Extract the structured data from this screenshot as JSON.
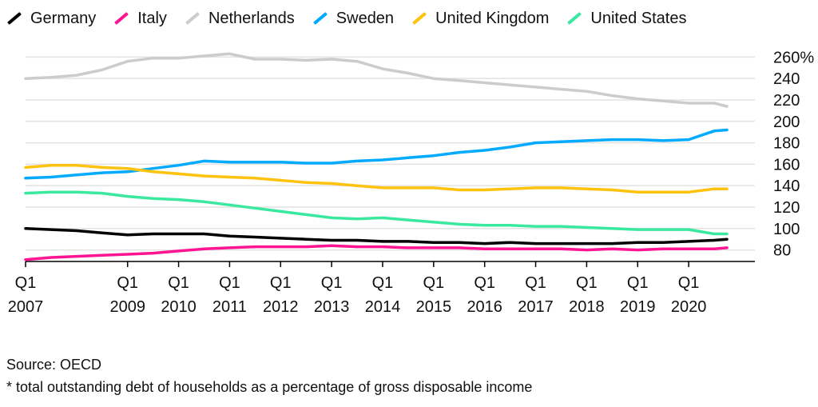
{
  "chart_data": {
    "type": "line",
    "title": "",
    "xlabel": "",
    "ylabel": "",
    "ylim": [
      70,
      264
    ],
    "xlim": [
      2007.0,
      2020.75
    ],
    "y_ticks": [
      80,
      100,
      120,
      140,
      160,
      180,
      200,
      220,
      240,
      260
    ],
    "y_tick_labels": [
      "80",
      "100",
      "120",
      "140",
      "160",
      "180",
      "200",
      "220",
      "240",
      "260%"
    ],
    "x_ticks": [
      {
        "x": 2007.0,
        "q": "Q1",
        "year": "2007"
      },
      {
        "x": 2009.0,
        "q": "Q1",
        "year": "2009"
      },
      {
        "x": 2010.0,
        "q": "Q1",
        "year": "2010"
      },
      {
        "x": 2011.0,
        "q": "Q1",
        "year": "2011"
      },
      {
        "x": 2012.0,
        "q": "Q1",
        "year": "2012"
      },
      {
        "x": 2013.0,
        "q": "Q1",
        "year": "2013"
      },
      {
        "x": 2014.0,
        "q": "Q1",
        "year": "2014"
      },
      {
        "x": 2015.0,
        "q": "Q1",
        "year": "2015"
      },
      {
        "x": 2016.0,
        "q": "Q1",
        "year": "2016"
      },
      {
        "x": 2017.0,
        "q": "Q1",
        "year": "2017"
      },
      {
        "x": 2018.0,
        "q": "Q1",
        "year": "2018"
      },
      {
        "x": 2019.0,
        "q": "Q1",
        "year": "2019"
      },
      {
        "x": 2020.0,
        "q": "Q1",
        "year": "2020"
      }
    ],
    "grid": true,
    "legend_position": "top",
    "series": [
      {
        "name": "Germany",
        "color": "#000000",
        "points": [
          [
            2007.0,
            100
          ],
          [
            2007.5,
            99
          ],
          [
            2008.0,
            98
          ],
          [
            2008.5,
            96
          ],
          [
            2009.0,
            94
          ],
          [
            2009.5,
            95
          ],
          [
            2010.0,
            95
          ],
          [
            2010.5,
            95
          ],
          [
            2011.0,
            93
          ],
          [
            2011.5,
            92
          ],
          [
            2012.0,
            91
          ],
          [
            2012.5,
            90
          ],
          [
            2013.0,
            89
          ],
          [
            2013.5,
            89
          ],
          [
            2014.0,
            88
          ],
          [
            2014.5,
            88
          ],
          [
            2015.0,
            87
          ],
          [
            2015.5,
            87
          ],
          [
            2016.0,
            86
          ],
          [
            2016.5,
            87
          ],
          [
            2017.0,
            86
          ],
          [
            2017.5,
            86
          ],
          [
            2018.0,
            86
          ],
          [
            2018.5,
            86
          ],
          [
            2019.0,
            87
          ],
          [
            2019.5,
            87
          ],
          [
            2020.0,
            88
          ],
          [
            2020.5,
            89
          ],
          [
            2020.75,
            90
          ]
        ]
      },
      {
        "name": "Italy",
        "color": "#ff1493",
        "points": [
          [
            2007.0,
            71
          ],
          [
            2007.5,
            73
          ],
          [
            2008.0,
            74
          ],
          [
            2008.5,
            75
          ],
          [
            2009.0,
            76
          ],
          [
            2009.5,
            77
          ],
          [
            2010.0,
            79
          ],
          [
            2010.5,
            81
          ],
          [
            2011.0,
            82
          ],
          [
            2011.5,
            83
          ],
          [
            2012.0,
            83
          ],
          [
            2012.5,
            83
          ],
          [
            2013.0,
            84
          ],
          [
            2013.5,
            83
          ],
          [
            2014.0,
            83
          ],
          [
            2014.5,
            82
          ],
          [
            2015.0,
            82
          ],
          [
            2015.5,
            82
          ],
          [
            2016.0,
            81
          ],
          [
            2016.5,
            81
          ],
          [
            2017.0,
            81
          ],
          [
            2017.5,
            81
          ],
          [
            2018.0,
            80
          ],
          [
            2018.5,
            81
          ],
          [
            2019.0,
            80
          ],
          [
            2019.5,
            81
          ],
          [
            2020.0,
            81
          ],
          [
            2020.5,
            81
          ],
          [
            2020.75,
            82
          ]
        ]
      },
      {
        "name": "Netherlands",
        "color": "#cccccc",
        "points": [
          [
            2007.0,
            240
          ],
          [
            2007.5,
            241
          ],
          [
            2008.0,
            243
          ],
          [
            2008.5,
            248
          ],
          [
            2009.0,
            256
          ],
          [
            2009.5,
            259
          ],
          [
            2010.0,
            259
          ],
          [
            2010.5,
            261
          ],
          [
            2011.0,
            263
          ],
          [
            2011.5,
            258
          ],
          [
            2012.0,
            258
          ],
          [
            2012.5,
            257
          ],
          [
            2013.0,
            258
          ],
          [
            2013.5,
            256
          ],
          [
            2014.0,
            249
          ],
          [
            2014.5,
            245
          ],
          [
            2015.0,
            240
          ],
          [
            2015.5,
            238
          ],
          [
            2016.0,
            236
          ],
          [
            2016.5,
            234
          ],
          [
            2017.0,
            232
          ],
          [
            2017.5,
            230
          ],
          [
            2018.0,
            228
          ],
          [
            2018.5,
            224
          ],
          [
            2019.0,
            221
          ],
          [
            2019.5,
            219
          ],
          [
            2020.0,
            217
          ],
          [
            2020.5,
            217
          ],
          [
            2020.75,
            214
          ]
        ]
      },
      {
        "name": "Sweden",
        "color": "#00aaff",
        "points": [
          [
            2007.0,
            147
          ],
          [
            2007.5,
            148
          ],
          [
            2008.0,
            150
          ],
          [
            2008.5,
            152
          ],
          [
            2009.0,
            153
          ],
          [
            2009.5,
            156
          ],
          [
            2010.0,
            159
          ],
          [
            2010.5,
            163
          ],
          [
            2011.0,
            162
          ],
          [
            2011.5,
            162
          ],
          [
            2012.0,
            162
          ],
          [
            2012.5,
            161
          ],
          [
            2013.0,
            161
          ],
          [
            2013.5,
            163
          ],
          [
            2014.0,
            164
          ],
          [
            2014.5,
            166
          ],
          [
            2015.0,
            168
          ],
          [
            2015.5,
            171
          ],
          [
            2016.0,
            173
          ],
          [
            2016.5,
            176
          ],
          [
            2017.0,
            180
          ],
          [
            2017.5,
            181
          ],
          [
            2018.0,
            182
          ],
          [
            2018.5,
            183
          ],
          [
            2019.0,
            183
          ],
          [
            2019.5,
            182
          ],
          [
            2020.0,
            183
          ],
          [
            2020.5,
            191
          ],
          [
            2020.75,
            192
          ]
        ]
      },
      {
        "name": "United Kingdom",
        "color": "#ffc20e",
        "points": [
          [
            2007.0,
            157
          ],
          [
            2007.5,
            159
          ],
          [
            2008.0,
            159
          ],
          [
            2008.5,
            157
          ],
          [
            2009.0,
            156
          ],
          [
            2009.5,
            153
          ],
          [
            2010.0,
            151
          ],
          [
            2010.5,
            149
          ],
          [
            2011.0,
            148
          ],
          [
            2011.5,
            147
          ],
          [
            2012.0,
            145
          ],
          [
            2012.5,
            143
          ],
          [
            2013.0,
            142
          ],
          [
            2013.5,
            140
          ],
          [
            2014.0,
            138
          ],
          [
            2014.5,
            138
          ],
          [
            2015.0,
            138
          ],
          [
            2015.5,
            136
          ],
          [
            2016.0,
            136
          ],
          [
            2016.5,
            137
          ],
          [
            2017.0,
            138
          ],
          [
            2017.5,
            138
          ],
          [
            2018.0,
            137
          ],
          [
            2018.5,
            136
          ],
          [
            2019.0,
            134
          ],
          [
            2019.5,
            134
          ],
          [
            2020.0,
            134
          ],
          [
            2020.5,
            137
          ],
          [
            2020.75,
            137
          ]
        ]
      },
      {
        "name": "United States",
        "color": "#3be8a0",
        "points": [
          [
            2007.0,
            133
          ],
          [
            2007.5,
            134
          ],
          [
            2008.0,
            134
          ],
          [
            2008.5,
            133
          ],
          [
            2009.0,
            130
          ],
          [
            2009.5,
            128
          ],
          [
            2010.0,
            127
          ],
          [
            2010.5,
            125
          ],
          [
            2011.0,
            122
          ],
          [
            2011.5,
            119
          ],
          [
            2012.0,
            116
          ],
          [
            2012.5,
            113
          ],
          [
            2013.0,
            110
          ],
          [
            2013.5,
            109
          ],
          [
            2014.0,
            110
          ],
          [
            2014.5,
            108
          ],
          [
            2015.0,
            106
          ],
          [
            2015.5,
            104
          ],
          [
            2016.0,
            103
          ],
          [
            2016.5,
            103
          ],
          [
            2017.0,
            102
          ],
          [
            2017.5,
            102
          ],
          [
            2018.0,
            101
          ],
          [
            2018.5,
            100
          ],
          [
            2019.0,
            99
          ],
          [
            2019.5,
            99
          ],
          [
            2020.0,
            99
          ],
          [
            2020.5,
            95
          ],
          [
            2020.75,
            95
          ]
        ]
      }
    ]
  },
  "footer": {
    "source": "Source: OECD",
    "note": "* total outstanding debt of households as a percentage of gross disposable income"
  }
}
